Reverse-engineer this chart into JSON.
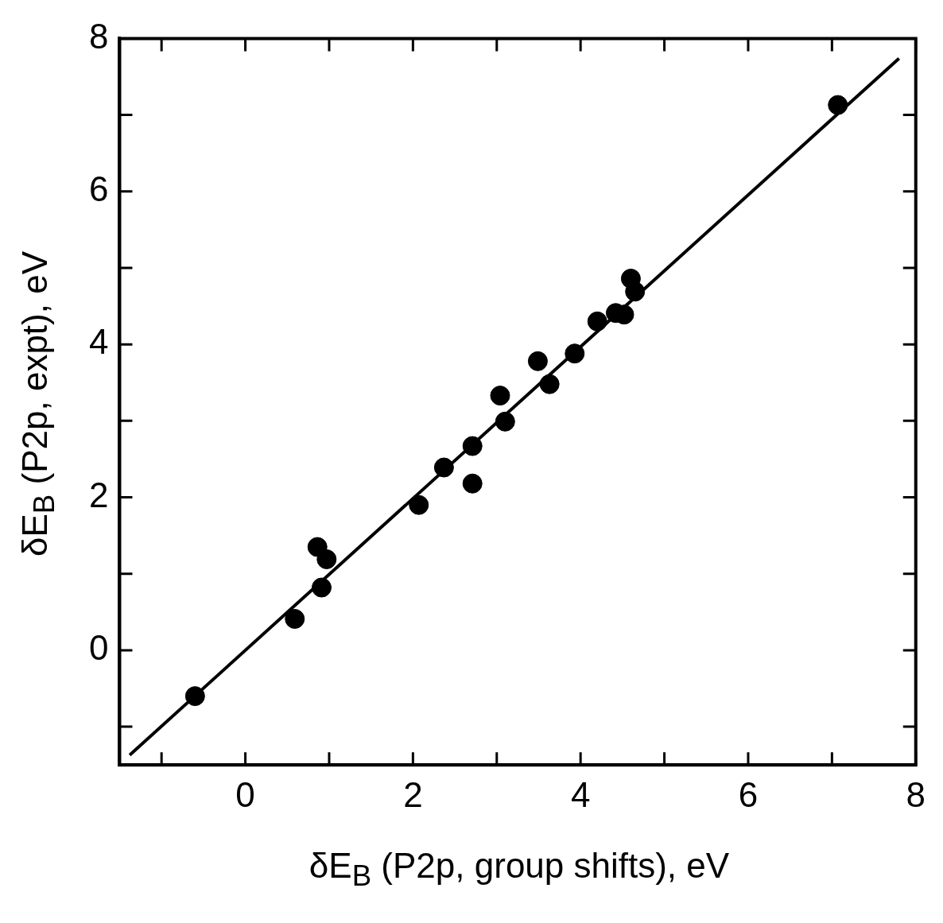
{
  "chart_data": {
    "type": "scatter",
    "xlabel": "δE$_{B}$ (P2p, group shifts), eV",
    "ylabel": "δE$_{B}$ (P2p, expt), eV",
    "xlim": [
      -1.5,
      8
    ],
    "ylim": [
      -1.5,
      8
    ],
    "xticks": [
      {
        "value": -1,
        "label": null
      },
      0,
      {
        "value": 1,
        "label": null
      },
      2,
      {
        "value": 3,
        "label": null
      },
      4,
      {
        "value": 5,
        "label": null
      },
      6,
      {
        "value": 7,
        "label": null
      },
      8
    ],
    "yticks": [
      {
        "value": -1,
        "label": null
      },
      0,
      {
        "value": 1,
        "label": null
      },
      2,
      {
        "value": 3,
        "label": null
      },
      4,
      {
        "value": 5,
        "label": null
      },
      6,
      {
        "value": 7,
        "label": null
      },
      8
    ],
    "grid": false,
    "series": [
      {
        "marker": "circle",
        "color": "#000000",
        "x": [
          -0.6,
          0.59,
          0.86,
          0.97,
          0.91,
          2.07,
          2.37,
          2.71,
          2.71,
          3.04,
          3.1,
          3.49,
          3.63,
          3.93,
          4.2,
          4.42,
          4.52,
          4.6,
          4.65,
          7.07
        ],
        "values": [
          -0.6,
          0.41,
          1.35,
          1.19,
          0.82,
          1.9,
          2.39,
          2.67,
          2.18,
          3.33,
          2.99,
          3.78,
          3.48,
          3.88,
          4.3,
          4.41,
          4.39,
          4.86,
          4.69,
          7.13
        ]
      },
      {
        "type": "line",
        "color": "#000000",
        "x": [
          -1.38,
          7.8
        ],
        "values": [
          -1.37,
          7.74
        ]
      }
    ]
  }
}
